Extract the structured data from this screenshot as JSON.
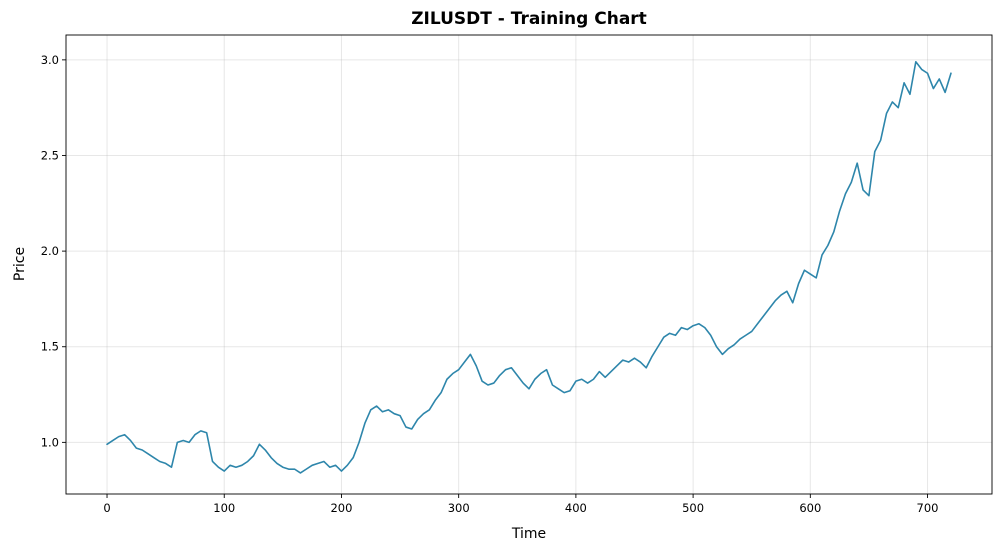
{
  "chart_data": {
    "type": "line",
    "title": "ZILUSDT - Training Chart",
    "xlabel": "Time",
    "ylabel": "Price",
    "xlim": [
      -35,
      755
    ],
    "ylim": [
      0.73,
      3.13
    ],
    "xticks": [
      0,
      100,
      200,
      300,
      400,
      500,
      600,
      700
    ],
    "yticks": [
      1.0,
      1.5,
      2.0,
      2.5,
      3.0
    ],
    "ytick_labels": [
      "1.0",
      "1.5",
      "2.0",
      "2.5",
      "3.0"
    ],
    "grid": true,
    "series": [
      {
        "color": "#2e86ab",
        "x": [
          0,
          5,
          10,
          15,
          20,
          25,
          30,
          35,
          40,
          45,
          50,
          55,
          60,
          65,
          70,
          75,
          80,
          85,
          90,
          95,
          100,
          105,
          110,
          115,
          120,
          125,
          130,
          135,
          140,
          145,
          150,
          155,
          160,
          165,
          170,
          175,
          180,
          185,
          190,
          195,
          200,
          205,
          210,
          215,
          220,
          225,
          230,
          235,
          240,
          245,
          250,
          255,
          260,
          265,
          270,
          275,
          280,
          285,
          290,
          295,
          300,
          305,
          310,
          315,
          320,
          325,
          330,
          335,
          340,
          345,
          350,
          355,
          360,
          365,
          370,
          375,
          380,
          385,
          390,
          395,
          400,
          405,
          410,
          415,
          420,
          425,
          430,
          435,
          440,
          445,
          450,
          455,
          460,
          465,
          470,
          475,
          480,
          485,
          490,
          495,
          500,
          505,
          510,
          515,
          520,
          525,
          530,
          535,
          540,
          545,
          550,
          555,
          560,
          565,
          570,
          575,
          580,
          585,
          590,
          595,
          600,
          605,
          610,
          615,
          620,
          625,
          630,
          635,
          640,
          645,
          650,
          655,
          660,
          665,
          670,
          675,
          680,
          685,
          690,
          695,
          700,
          705,
          710,
          715,
          720
        ],
        "y": [
          0.99,
          1.01,
          1.03,
          1.04,
          1.01,
          0.97,
          0.96,
          0.94,
          0.92,
          0.9,
          0.89,
          0.87,
          1.0,
          1.01,
          1.0,
          1.04,
          1.06,
          1.05,
          0.9,
          0.87,
          0.85,
          0.88,
          0.87,
          0.88,
          0.9,
          0.93,
          0.99,
          0.96,
          0.92,
          0.89,
          0.87,
          0.86,
          0.86,
          0.84,
          0.86,
          0.88,
          0.89,
          0.9,
          0.87,
          0.88,
          0.85,
          0.88,
          0.92,
          1.0,
          1.1,
          1.17,
          1.19,
          1.16,
          1.17,
          1.15,
          1.14,
          1.08,
          1.07,
          1.12,
          1.15,
          1.17,
          1.22,
          1.26,
          1.33,
          1.36,
          1.38,
          1.42,
          1.46,
          1.4,
          1.32,
          1.3,
          1.31,
          1.35,
          1.38,
          1.39,
          1.35,
          1.31,
          1.28,
          1.33,
          1.36,
          1.38,
          1.3,
          1.28,
          1.26,
          1.27,
          1.32,
          1.33,
          1.31,
          1.33,
          1.37,
          1.34,
          1.37,
          1.4,
          1.43,
          1.42,
          1.44,
          1.42,
          1.39,
          1.45,
          1.5,
          1.55,
          1.57,
          1.56,
          1.6,
          1.59,
          1.61,
          1.62,
          1.6,
          1.56,
          1.5,
          1.46,
          1.49,
          1.51,
          1.54,
          1.56,
          1.58,
          1.62,
          1.66,
          1.7,
          1.74,
          1.77,
          1.79,
          1.73,
          1.83,
          1.9,
          1.88,
          1.86,
          1.98,
          2.03,
          2.1,
          2.21,
          2.3,
          2.36,
          2.46,
          2.32,
          2.29,
          2.52,
          2.58,
          2.72,
          2.78,
          2.75,
          2.88,
          2.82,
          2.99,
          2.95,
          2.93,
          2.85,
          2.9,
          2.83,
          2.93
        ]
      }
    ]
  }
}
